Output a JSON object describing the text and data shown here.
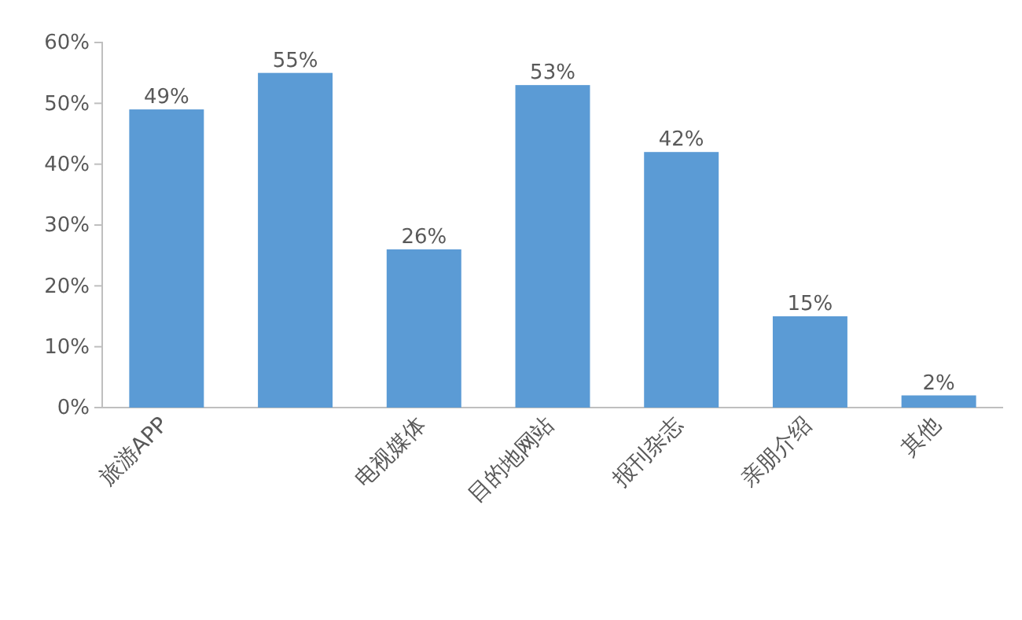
{
  "chart_data": {
    "type": "bar",
    "categories": [
      "旅游APP",
      null,
      "电视媒体",
      "目的地网站",
      "报刊杂志",
      "亲朋介绍",
      "其他"
    ],
    "values": [
      49,
      55,
      26,
      53,
      42,
      15,
      2
    ],
    "color": "#5b9bd5",
    "value_labels": [
      "49%",
      "55%",
      "26%",
      "53%",
      "42%",
      "15%",
      "2%"
    ],
    "ylim": [
      0,
      60
    ],
    "yticks": [
      {
        "value": 0,
        "label": "0%"
      },
      {
        "value": 10,
        "label": "10%"
      },
      {
        "value": 20,
        "label": "20%"
      },
      {
        "value": 30,
        "label": "30%"
      },
      {
        "value": 40,
        "label": "40%"
      },
      {
        "value": 50,
        "label": "50%"
      },
      {
        "value": 60,
        "label": "60%"
      }
    ],
    "grid": false
  }
}
